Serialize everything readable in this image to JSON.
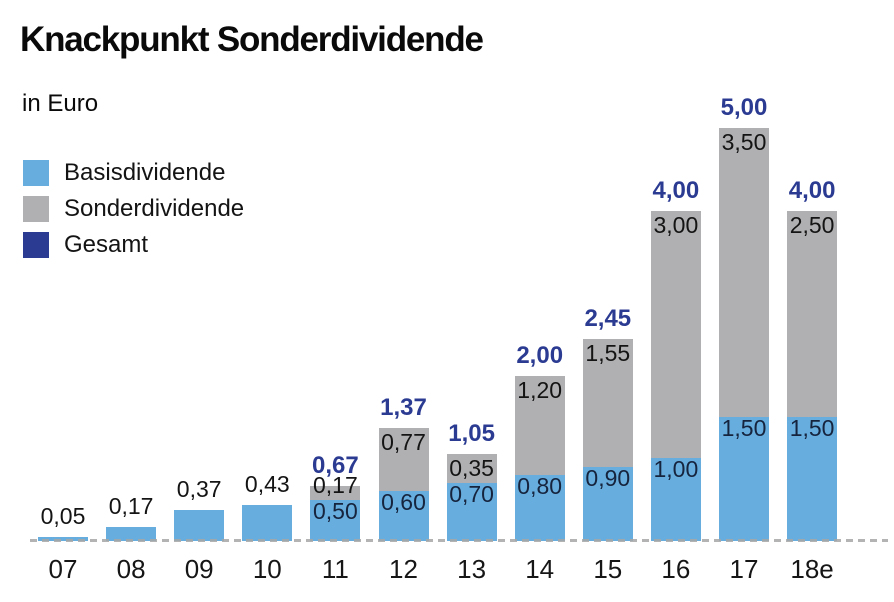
{
  "header": {
    "title": "Knackpunkt Sonderdividende",
    "subtitle": "in Euro"
  },
  "legend": {
    "items": [
      {
        "label": "Basisdividende",
        "color": "#67aede"
      },
      {
        "label": "Sonderdividende",
        "color": "#b0b0b2"
      },
      {
        "label": "Gesamt",
        "color": "#2b3b92"
      }
    ]
  },
  "chart_data": {
    "type": "bar",
    "stacked": true,
    "title": "Knackpunkt Sonderdividende",
    "subtitle": "in Euro",
    "unit": "Euro",
    "xlabel": "",
    "ylabel": "",
    "ylim": [
      0,
      5.5
    ],
    "grid": false,
    "legend_position": "top-left",
    "categories": [
      "07",
      "08",
      "09",
      "10",
      "11",
      "12",
      "13",
      "14",
      "15",
      "16",
      "17",
      "18e"
    ],
    "series": [
      {
        "name": "Basisdividende",
        "color": "#67aede",
        "values": [
          0.05,
          0.17,
          0.37,
          0.43,
          0.5,
          0.6,
          0.7,
          0.8,
          0.9,
          1.0,
          1.5,
          1.5
        ]
      },
      {
        "name": "Sonderdividende",
        "color": "#b0b0b2",
        "values": [
          0,
          0,
          0,
          0,
          0.17,
          0.77,
          0.35,
          1.2,
          1.55,
          3.0,
          3.5,
          2.5
        ]
      }
    ],
    "totals": [
      0.05,
      0.17,
      0.37,
      0.43,
      0.67,
      1.37,
      1.05,
      2.0,
      2.45,
      4.0,
      5.0,
      4.0
    ],
    "labels": {
      "basis": [
        "0,05",
        "0,17",
        "0,37",
        "0,43",
        "0,50",
        "0,60",
        "0,70",
        "0,80",
        "0,90",
        "1,00",
        "1,50",
        "1,50"
      ],
      "sonder": [
        "",
        "",
        "",
        "",
        "0,17",
        "0,77",
        "0,35",
        "1,20",
        "1,55",
        "3,00",
        "3,50",
        "2,50"
      ],
      "total": [
        "",
        "",
        "",
        "",
        "0,67",
        "1,37",
        "1,05",
        "2,00",
        "2,45",
        "4,00",
        "5,00",
        "4,00"
      ]
    },
    "colors": {
      "basis": "#67aede",
      "sonder": "#b0b0b2",
      "total_label": "#2b3b92",
      "basis_label": "#16243e",
      "sonder_label": "#141414",
      "plain_label": "#141414",
      "baseline": "#a6a6a6"
    }
  }
}
